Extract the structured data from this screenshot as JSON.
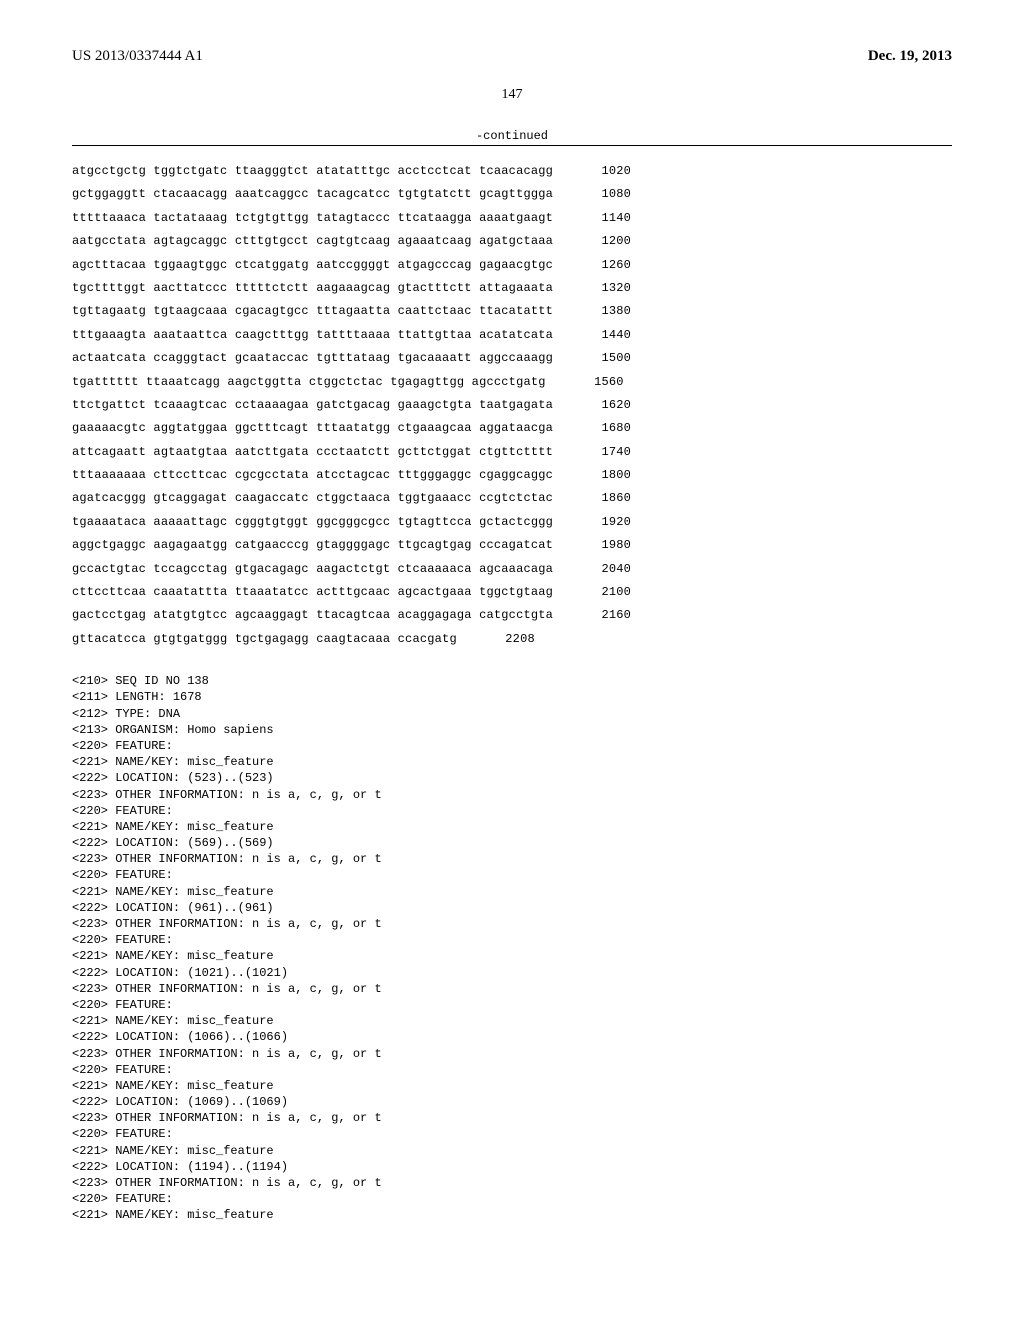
{
  "header": {
    "pub_number": "US 2013/0337444 A1",
    "pub_date": "Dec. 19, 2013"
  },
  "page_number": "147",
  "continued_label": "-continued",
  "sequence": {
    "lines": [
      {
        "groups": [
          "atgcctgctg",
          "tggtctgatc",
          "ttaagggtct",
          "atatatttgc",
          "acctcctcat",
          "tcaacacagg"
        ],
        "num": "1020"
      },
      {
        "groups": [
          "gctggaggtt",
          "ctacaacagg",
          "aaatcaggcc",
          "tacagcatcc",
          "tgtgtatctt",
          "gcagttggga"
        ],
        "num": "1080"
      },
      {
        "groups": [
          "tttttaaaca",
          "tactataaag",
          "tctgtgttgg",
          "tatagtaccc",
          "ttcataagga",
          "aaaatgaagt"
        ],
        "num": "1140"
      },
      {
        "groups": [
          "aatgcctata",
          "agtagcaggc",
          "ctttgtgcct",
          "cagtgtcaag",
          "agaaatcaag",
          "agatgctaaa"
        ],
        "num": "1200"
      },
      {
        "groups": [
          "agctttacaa",
          "tggaagtggc",
          "ctcatggatg",
          "aatccggggt",
          "atgagcccag",
          "gagaacgtgc"
        ],
        "num": "1260"
      },
      {
        "groups": [
          "tgcttttggt",
          "aacttatccc",
          "tttttctctt",
          "aagaaagcag",
          "gtactttctt",
          "attagaaata"
        ],
        "num": "1320"
      },
      {
        "groups": [
          "tgttagaatg",
          "tgtaagcaaa",
          "cgacagtgcc",
          "tttagaatta",
          "caattctaac",
          "ttacatattt"
        ],
        "num": "1380"
      },
      {
        "groups": [
          "tttgaaagta",
          "aaataattca",
          "caagctttgg",
          "tattttaaaa",
          "ttattgttaa",
          "acatatcata"
        ],
        "num": "1440"
      },
      {
        "groups": [
          "actaatcata",
          "ccagggtact",
          "gcaataccac",
          "tgtttataag",
          "tgacaaaatt",
          "aggccaaagg"
        ],
        "num": "1500"
      },
      {
        "groups": [
          "tgatttttt",
          "ttaaatcagg",
          "aagctggtta",
          "ctggctctac",
          "tgagagttgg",
          "agccctgatg"
        ],
        "num": "1560"
      },
      {
        "groups": [
          "ttctgattct",
          "tcaaagtcac",
          "cctaaaagaa",
          "gatctgacag",
          "gaaagctgta",
          "taatgagata"
        ],
        "num": "1620"
      },
      {
        "groups": [
          "gaaaaacgtc",
          "aggtatggaa",
          "ggctttcagt",
          "tttaatatgg",
          "ctgaaagcaa",
          "aggataacga"
        ],
        "num": "1680"
      },
      {
        "groups": [
          "attcagaatt",
          "agtaatgtaa",
          "aatcttgata",
          "ccctaatctt",
          "gcttctggat",
          "ctgttctttt"
        ],
        "num": "1740"
      },
      {
        "groups": [
          "tttaaaaaaa",
          "cttccttcac",
          "cgcgcctata",
          "atcctagcac",
          "tttgggaggc",
          "cgaggcaggc"
        ],
        "num": "1800"
      },
      {
        "groups": [
          "agatcacggg",
          "gtcaggagat",
          "caagaccatc",
          "ctggctaaca",
          "tggtgaaacc",
          "ccgtctctac"
        ],
        "num": "1860"
      },
      {
        "groups": [
          "tgaaaataca",
          "aaaaattagc",
          "cgggtgtggt",
          "ggcgggcgcc",
          "tgtagttcca",
          "gctactcggg"
        ],
        "num": "1920"
      },
      {
        "groups": [
          "aggctgaggc",
          "aagagaatgg",
          "catgaacccg",
          "gtaggggagc",
          "ttgcagtgag",
          "cccagatcat"
        ],
        "num": "1980"
      },
      {
        "groups": [
          "gccactgtac",
          "tccagcctag",
          "gtgacagagc",
          "aagactctgt",
          "ctcaaaaaca",
          "agcaaacaga"
        ],
        "num": "2040"
      },
      {
        "groups": [
          "cttccttcaa",
          "caaatattta",
          "ttaaatatcc",
          "actttgcaac",
          "agcactgaaa",
          "tggctgtaag"
        ],
        "num": "2100"
      },
      {
        "groups": [
          "gactcctgag",
          "atatgtgtcc",
          "agcaaggagt",
          "ttacagtcaa",
          "acaggagaga",
          "catgcctgta"
        ],
        "num": "2160"
      },
      {
        "groups": [
          "gttacatcca",
          "gtgtgatggg",
          "tgctgagagg",
          "caagtacaaa",
          "ccacgatg",
          ""
        ],
        "num": "2208"
      }
    ]
  },
  "metadata": {
    "lines": [
      "<210> SEQ ID NO 138",
      "<211> LENGTH: 1678",
      "<212> TYPE: DNA",
      "<213> ORGANISM: Homo sapiens",
      "<220> FEATURE:",
      "<221> NAME/KEY: misc_feature",
      "<222> LOCATION: (523)..(523)",
      "<223> OTHER INFORMATION: n is a, c, g, or t",
      "<220> FEATURE:",
      "<221> NAME/KEY: misc_feature",
      "<222> LOCATION: (569)..(569)",
      "<223> OTHER INFORMATION: n is a, c, g, or t",
      "<220> FEATURE:",
      "<221> NAME/KEY: misc_feature",
      "<222> LOCATION: (961)..(961)",
      "<223> OTHER INFORMATION: n is a, c, g, or t",
      "<220> FEATURE:",
      "<221> NAME/KEY: misc_feature",
      "<222> LOCATION: (1021)..(1021)",
      "<223> OTHER INFORMATION: n is a, c, g, or t",
      "<220> FEATURE:",
      "<221> NAME/KEY: misc_feature",
      "<222> LOCATION: (1066)..(1066)",
      "<223> OTHER INFORMATION: n is a, c, g, or t",
      "<220> FEATURE:",
      "<221> NAME/KEY: misc_feature",
      "<222> LOCATION: (1069)..(1069)",
      "<223> OTHER INFORMATION: n is a, c, g, or t",
      "<220> FEATURE:",
      "<221> NAME/KEY: misc_feature",
      "<222> LOCATION: (1194)..(1194)",
      "<223> OTHER INFORMATION: n is a, c, g, or t",
      "<220> FEATURE:",
      "<221> NAME/KEY: misc_feature"
    ]
  },
  "style": {
    "font_mono": "Courier New",
    "font_serif": "Times New Roman",
    "text_color": "#000000",
    "background": "#ffffff",
    "group_gap_spaces": 1
  }
}
